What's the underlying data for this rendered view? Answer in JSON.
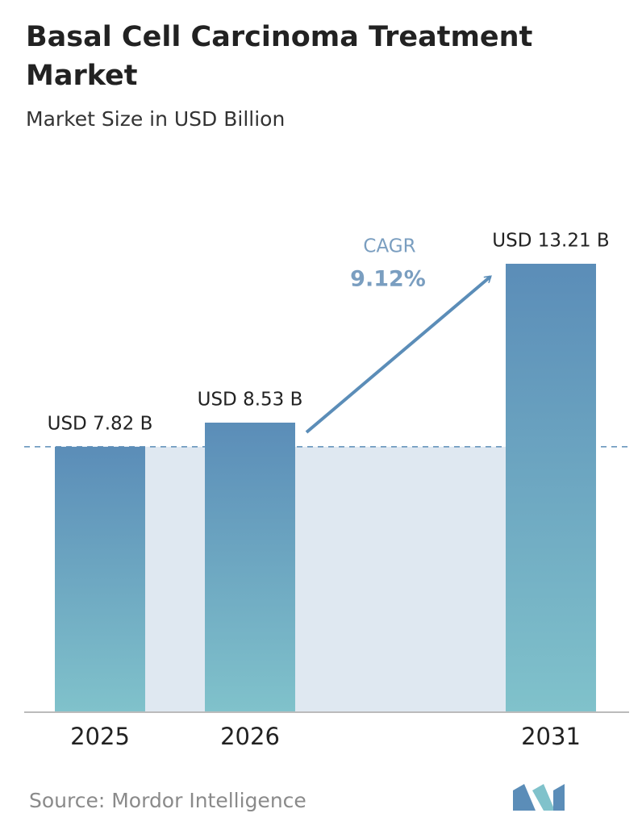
{
  "chart_data": {
    "type": "bar",
    "title": "Basal Cell Carcinoma Treatment Market",
    "subtitle": "Market Size in USD Billion",
    "categories": [
      "2025",
      "2026",
      "2031"
    ],
    "values": [
      7.82,
      8.53,
      13.21
    ],
    "value_labels": [
      "USD 7.82 B",
      "USD 8.53 B",
      "USD 13.21 B"
    ],
    "color": "#5b8db8",
    "annotation": {
      "label": "CAGR",
      "value": "9.12%"
    },
    "source": "Source:  Mordor Intelligence"
  }
}
